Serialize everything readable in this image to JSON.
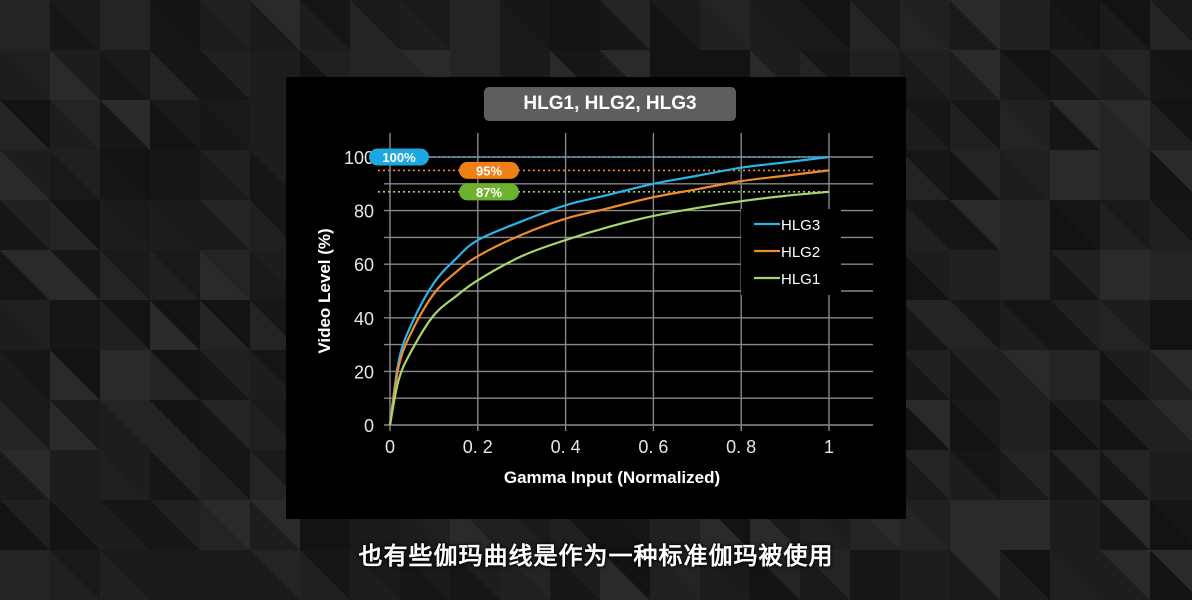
{
  "slide": {
    "title": "HLG1, HLG2, HLG3",
    "subtitle": "也有些伽玛曲线是作为一种标准伽玛被使用"
  },
  "colors": {
    "hlg3": "#29b6e8",
    "hlg2": "#f08a2c",
    "hlg1": "#a6d66e",
    "pill_hlg3": "#1ea7e0",
    "pill_hlg2": "#f07f18",
    "pill_hlg1": "#6cb22e",
    "grid": "#8a8a8a",
    "title_bg": "#5e5e5e"
  },
  "chart_data": {
    "type": "line",
    "title": "HLG1, HLG2, HLG3",
    "xlabel": "Gamma Input (Normalized)",
    "ylabel": "Video Level (%)",
    "xlim": [
      0,
      1
    ],
    "ylim": [
      0,
      100
    ],
    "x_ticks": [
      "0",
      "0.2",
      "0.4",
      "0.6",
      "0.8",
      "1"
    ],
    "y_ticks": [
      "0",
      "20",
      "40",
      "60",
      "80",
      "100"
    ],
    "grid": true,
    "legend_position": "right-middle inside",
    "x": [
      0,
      0.02,
      0.05,
      0.1,
      0.15,
      0.2,
      0.3,
      0.4,
      0.5,
      0.6,
      0.7,
      0.8,
      0.9,
      1.0
    ],
    "series": [
      {
        "name": "HLG3",
        "values": [
          0,
          24,
          38,
          53,
          62,
          69,
          76,
          82,
          86,
          90,
          93,
          96,
          98,
          100
        ]
      },
      {
        "name": "HLG2",
        "values": [
          0,
          22,
          35,
          49,
          57,
          63,
          71,
          77,
          81,
          85,
          88,
          91,
          93,
          95
        ]
      },
      {
        "name": "HLG1",
        "values": [
          0,
          17,
          28,
          41,
          48,
          54,
          63,
          69,
          74,
          78,
          81,
          83.5,
          85.5,
          87
        ]
      }
    ],
    "annotations": [
      {
        "label": "100%",
        "y": 100,
        "series": "HLG3",
        "style": "dotted reference line"
      },
      {
        "label": "95%",
        "y": 95,
        "series": "HLG2",
        "style": "dotted reference line"
      },
      {
        "label": "87%",
        "y": 87,
        "series": "HLG1",
        "style": "dotted reference line"
      }
    ]
  }
}
